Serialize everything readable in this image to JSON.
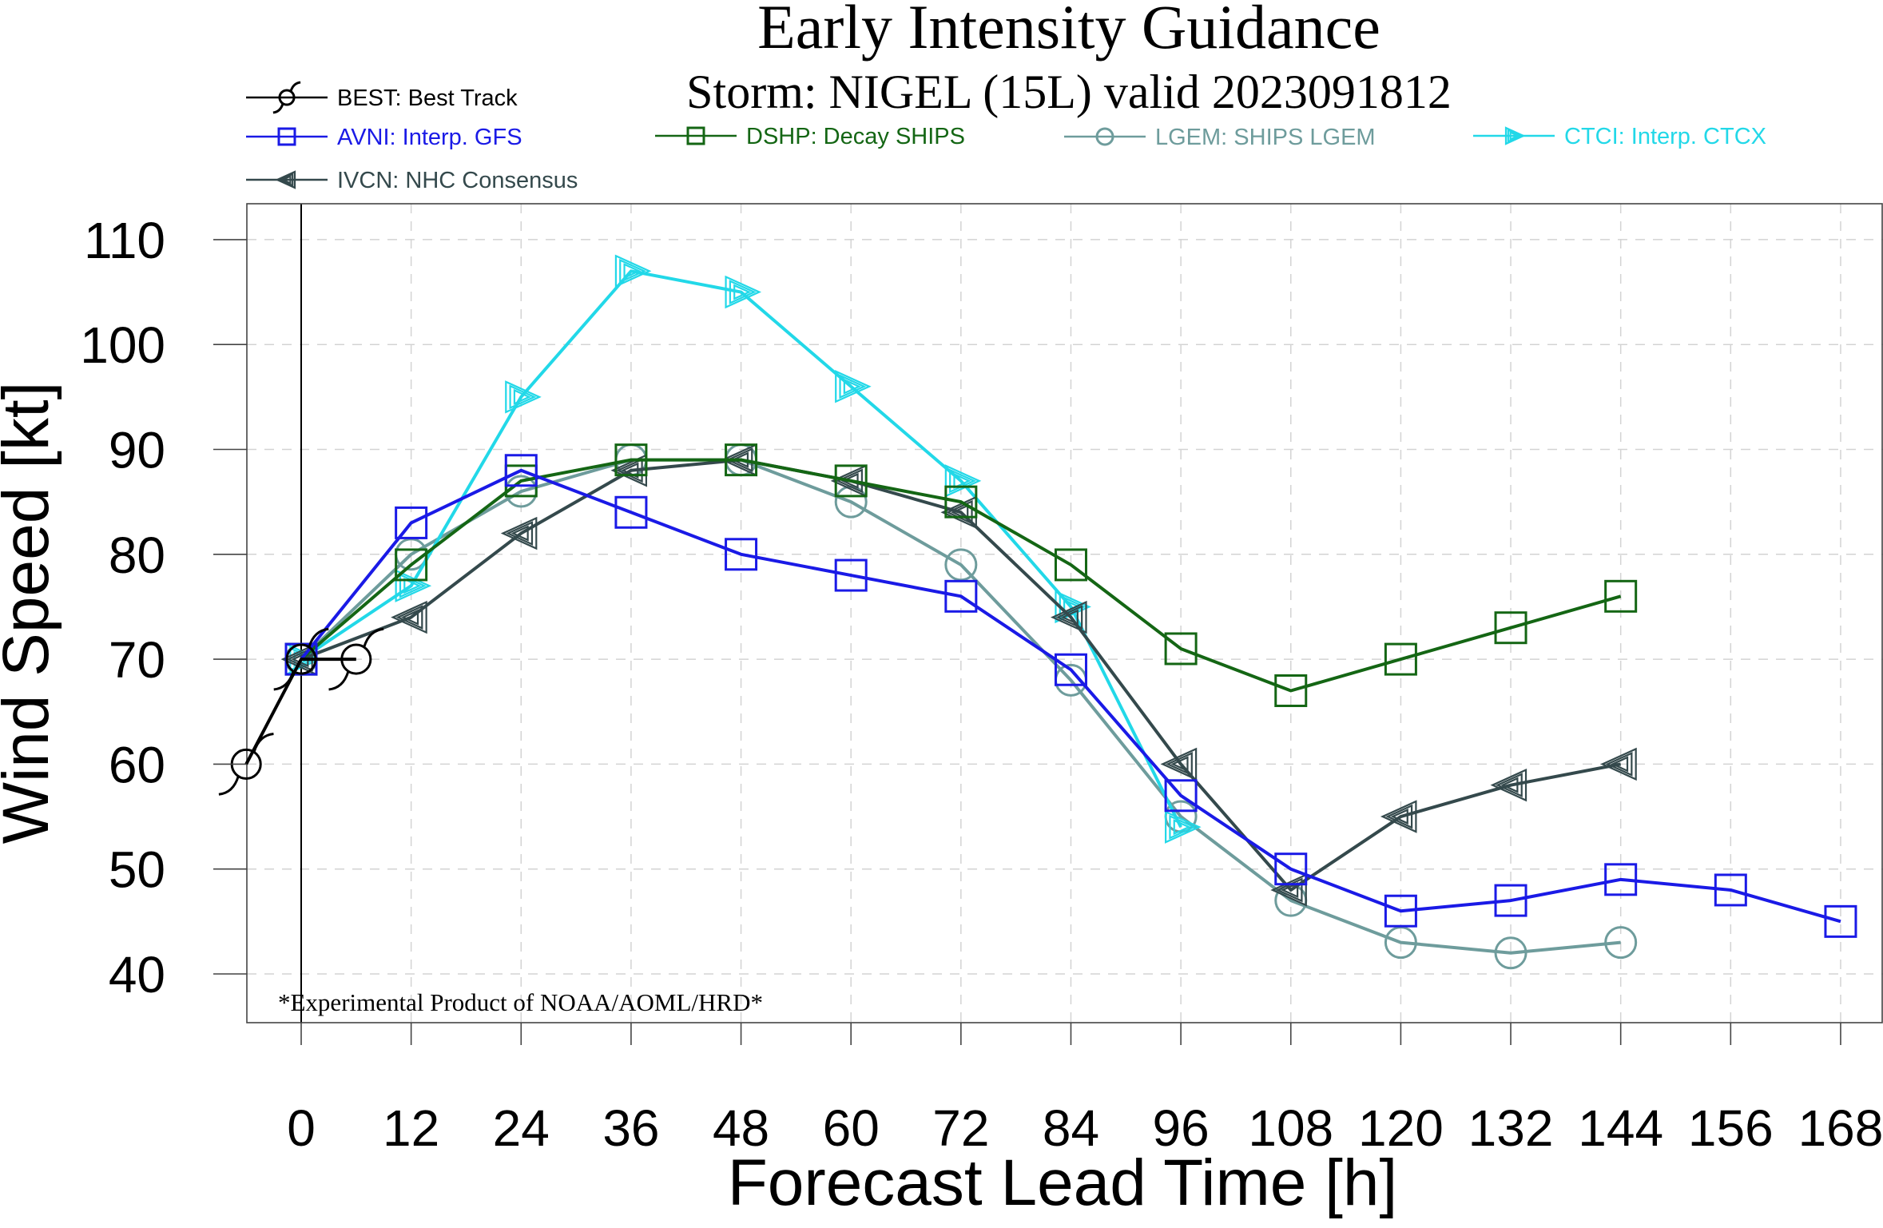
{
  "chart_data": {
    "type": "line",
    "title": "Early Intensity Guidance",
    "subtitle": "Storm: NIGEL (15L) valid 2023091812",
    "xlabel": "Forecast Lead Time [h]",
    "ylabel": "Wind Speed [kt]",
    "footnote": "*Experimental Product of NOAA/AOML/HRD*",
    "xlim": [
      -7,
      175
    ],
    "ylim": [
      35,
      113
    ],
    "xticks": [
      "0",
      "12",
      "24",
      "36",
      "48",
      "60",
      "72",
      "84",
      "96",
      "108",
      "120",
      "132",
      "144",
      "156",
      "168"
    ],
    "yticks": [
      "40",
      "50",
      "60",
      "70",
      "80",
      "90",
      "100",
      "110"
    ],
    "grid": true,
    "vertical_line_at": 0,
    "legend_position": "top",
    "series": [
      {
        "id": "best",
        "name": "BEST: Best Track",
        "color": "#000000",
        "marker": "hurricane",
        "x": [
          -6,
          0,
          6
        ],
        "y": [
          60,
          70,
          70
        ]
      },
      {
        "id": "avni",
        "name": "AVNI: Interp. GFS",
        "color": "#1a1ae6",
        "marker": "square",
        "x": [
          0,
          12,
          24,
          36,
          48,
          60,
          72,
          84,
          96,
          108,
          120,
          132,
          144,
          156,
          168
        ],
        "y": [
          70,
          83,
          88,
          84,
          80,
          78,
          76,
          69,
          57,
          50,
          46,
          47,
          49,
          48,
          45
        ]
      },
      {
        "id": "dshp",
        "name": "DSHP: Decay SHIPS",
        "color": "#146614",
        "marker": "square",
        "x": [
          0,
          12,
          24,
          36,
          48,
          60,
          72,
          84,
          96,
          108,
          120,
          132,
          144
        ],
        "y": [
          70,
          79,
          87,
          89,
          89,
          87,
          85,
          79,
          71,
          67,
          70,
          73,
          76
        ]
      },
      {
        "id": "lgem",
        "name": "LGEM: SHIPS LGEM",
        "color": "#6e9c9c",
        "marker": "circle",
        "x": [
          0,
          12,
          24,
          36,
          48,
          60,
          72,
          84,
          96,
          108,
          120,
          132,
          144
        ],
        "y": [
          70,
          80,
          86,
          89,
          89,
          85,
          79,
          68,
          55,
          47,
          43,
          42,
          43
        ]
      },
      {
        "id": "ctci",
        "name": "CTCI: Interp. CTCX",
        "color": "#22d8e8",
        "marker": "triangle-right",
        "x": [
          0,
          12,
          24,
          36,
          48,
          60,
          72,
          84,
          96
        ],
        "y": [
          70,
          77,
          95,
          107,
          105,
          96,
          87,
          75,
          54
        ]
      },
      {
        "id": "ivcn",
        "name": "IVCN: NHC Consensus",
        "color": "#34494c",
        "marker": "triangle-left",
        "x": [
          0,
          12,
          24,
          36,
          48,
          60,
          72,
          84,
          96,
          108,
          120,
          132,
          144
        ],
        "y": [
          70,
          74,
          82,
          88,
          89,
          87,
          84,
          74,
          60,
          48,
          55,
          58,
          60
        ]
      }
    ]
  }
}
